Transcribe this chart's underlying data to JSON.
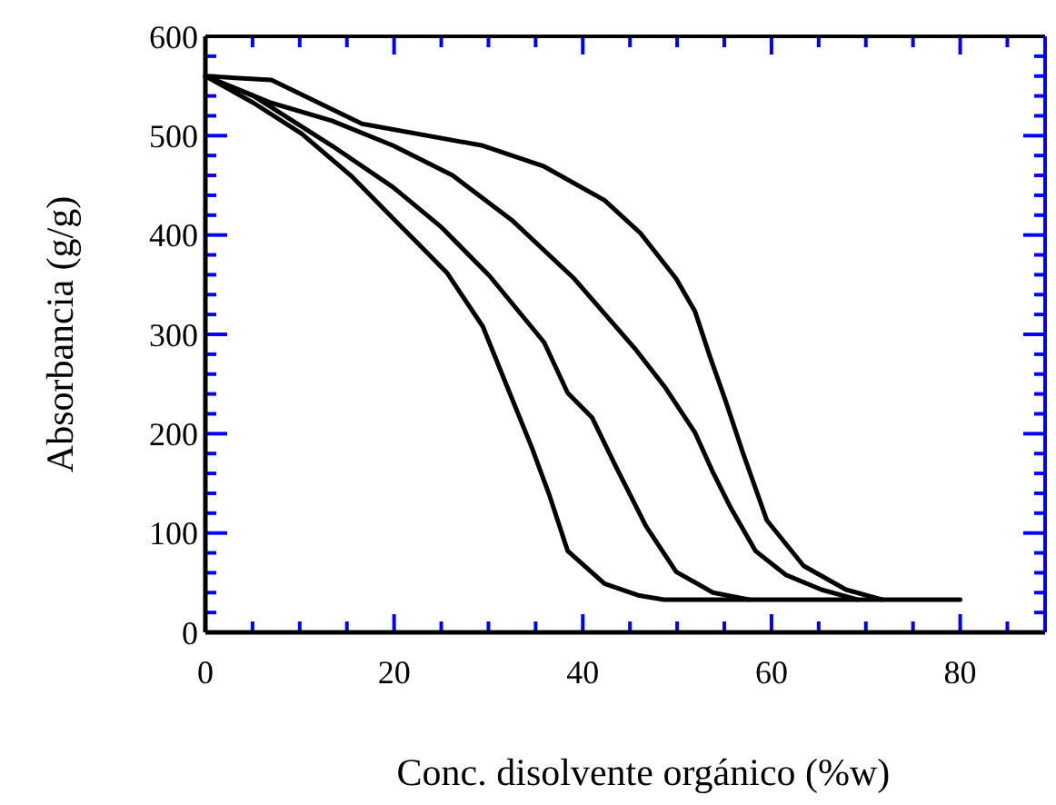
{
  "chart_data": {
    "type": "line",
    "xlabel": "Conc. disolvente orgánico (%w)",
    "ylabel": "Absorbancia (g/g)",
    "xlim": [
      0,
      89
    ],
    "ylim": [
      0,
      600
    ],
    "xticks": [
      0,
      {
        "value": 5,
        "label": null
      },
      {
        "value": 10,
        "label": null
      },
      {
        "value": 15,
        "label": null
      },
      20,
      {
        "value": 25,
        "label": null
      },
      {
        "value": 30,
        "label": null
      },
      {
        "value": 35,
        "label": null
      },
      40,
      {
        "value": 45,
        "label": null
      },
      {
        "value": 50,
        "label": null
      },
      {
        "value": 55,
        "label": null
      },
      60,
      {
        "value": 65,
        "label": null
      },
      {
        "value": 70,
        "label": null
      },
      {
        "value": 75,
        "label": null
      },
      80,
      {
        "value": 85,
        "label": null
      }
    ],
    "yticks": [
      0,
      {
        "value": 20,
        "label": null
      },
      {
        "value": 40,
        "label": null
      },
      {
        "value": 60,
        "label": null
      },
      {
        "value": 80,
        "label": null
      },
      100,
      {
        "value": 120,
        "label": null
      },
      {
        "value": 140,
        "label": null
      },
      {
        "value": 160,
        "label": null
      },
      {
        "value": 180,
        "label": null
      },
      200,
      {
        "value": 220,
        "label": null
      },
      {
        "value": 240,
        "label": null
      },
      {
        "value": 260,
        "label": null
      },
      {
        "value": 280,
        "label": null
      },
      300,
      {
        "value": 320,
        "label": null
      },
      {
        "value": 340,
        "label": null
      },
      {
        "value": 360,
        "label": null
      },
      {
        "value": 380,
        "label": null
      },
      400,
      {
        "value": 420,
        "label": null
      },
      {
        "value": 440,
        "label": null
      },
      {
        "value": 460,
        "label": null
      },
      {
        "value": 480,
        "label": null
      },
      500,
      {
        "value": 520,
        "label": null
      },
      {
        "value": 540,
        "label": null
      },
      {
        "value": 560,
        "label": null
      },
      {
        "value": 580,
        "label": null
      },
      600
    ],
    "grid": false,
    "marker": "none",
    "line_style": "solid",
    "series": [
      {
        "color": "#000000",
        "x": [
          0,
          7,
          16.6,
          29.4,
          35.9,
          42.3,
          46.1,
          49.9,
          51.9,
          53.5,
          55.1,
          57,
          59.5,
          63.4,
          67.9,
          71.7
        ],
        "values": [
          560,
          556,
          512,
          490,
          469,
          435,
          402,
          356,
          323,
          277,
          234,
          180,
          113,
          67,
          43,
          33
        ]
      },
      {
        "color": "#000000",
        "x": [
          0,
          7,
          13.4,
          19.9,
          26.2,
          32.6,
          39.1,
          45.5,
          48.7,
          51.9,
          53.8,
          55.7,
          58.3,
          61.5,
          65.3,
          69.1
        ],
        "values": [
          560,
          533,
          515,
          490,
          460,
          414,
          356,
          286,
          247,
          201,
          161,
          125,
          82,
          58,
          43,
          33
        ]
      },
      {
        "color": "#000000",
        "x": [
          0,
          5.1,
          13.4,
          19.9,
          25,
          30.1,
          35.9,
          38.4,
          41,
          43.5,
          46.7,
          49.9,
          53.8,
          57.6
        ],
        "values": [
          560,
          540,
          490,
          448,
          408,
          359,
          292,
          241,
          216,
          167,
          107,
          61,
          40,
          33
        ]
      },
      {
        "color": "#000000",
        "x": [
          0,
          5.1,
          10.2,
          15.4,
          20.5,
          25.6,
          29.4,
          32,
          34.6,
          36.5,
          38.4,
          42.3,
          46,
          48.6,
          80
        ],
        "values": [
          560,
          533,
          502,
          460,
          411,
          362,
          308,
          247,
          186,
          137,
          82,
          49,
          37,
          33,
          33
        ]
      }
    ]
  }
}
